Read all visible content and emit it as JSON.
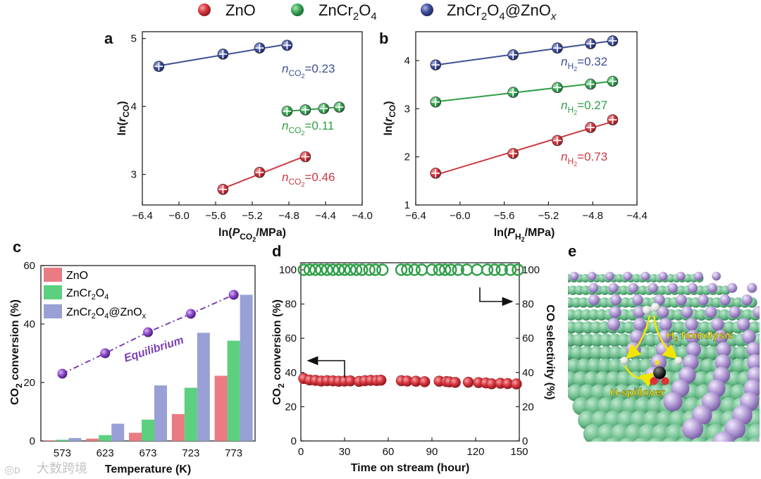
{
  "legend": {
    "items": [
      {
        "name": "ZnO",
        "color": "#d9353d"
      },
      {
        "name": "ZnCr2O4",
        "color": "#3aa957"
      },
      {
        "name": "ZnCr2O4@ZnOx",
        "color": "#3f4f9a"
      }
    ]
  },
  "colors": {
    "red": "#c93a41",
    "green": "#2f9e47",
    "blue": "#3d4f91",
    "red_bar": "#ea7a84",
    "green_bar": "#5cd07e",
    "blue_bar": "#98a0d6",
    "purple": "#7a3fb5",
    "crystal_green": "#6fbf8f",
    "crystal_purple": "#b39bd6"
  },
  "chart_data": [
    {
      "panel": "a",
      "type": "scatter",
      "xlabel": "ln(P_CO2/MPa)",
      "ylabel": "ln(r_CO)",
      "xlim": [
        -6.4,
        -4.0
      ],
      "ylim": [
        2.55,
        5.1
      ],
      "xticks": [
        "−6.4",
        "−6.0",
        "−5.6",
        "−5.2",
        "−4.8",
        "−4.4",
        "−4.0"
      ],
      "yticks": [
        "3",
        "4",
        "5"
      ],
      "series": [
        {
          "name": "ZnCr2O4@ZnOx",
          "x": [
            -6.22,
            -5.52,
            -5.12,
            -4.82
          ],
          "y": [
            4.59,
            4.77,
            4.86,
            4.9
          ],
          "annotation": "n_CO2=0.23"
        },
        {
          "name": "ZnCr2O4",
          "x": [
            -4.82,
            -4.62,
            -4.42,
            -4.25
          ],
          "y": [
            3.93,
            3.95,
            3.97,
            3.99
          ],
          "annotation": "n_CO2=0.11"
        },
        {
          "name": "ZnO",
          "x": [
            -5.52,
            -5.12,
            -4.62
          ],
          "y": [
            2.78,
            3.03,
            3.26
          ],
          "annotation": "n_CO2=0.46"
        }
      ]
    },
    {
      "panel": "b",
      "type": "scatter",
      "xlabel": "ln(P_H2/MPa)",
      "ylabel": "ln(r_CO)",
      "xlim": [
        -6.4,
        -4.4
      ],
      "ylim": [
        1.0,
        4.6
      ],
      "xticks": [
        "−6.4",
        "−6.0",
        "−5.6",
        "−5.2",
        "−4.8",
        "−4.4"
      ],
      "yticks": [
        "1",
        "2",
        "3",
        "4"
      ],
      "series": [
        {
          "name": "ZnCr2O4@ZnOx",
          "x": [
            -6.22,
            -5.52,
            -5.12,
            -4.82,
            -4.62
          ],
          "y": [
            3.91,
            4.12,
            4.26,
            4.35,
            4.41
          ],
          "annotation": "n_H2=0.32"
        },
        {
          "name": "ZnCr2O4",
          "x": [
            -6.22,
            -5.52,
            -5.12,
            -4.82,
            -4.62
          ],
          "y": [
            3.14,
            3.34,
            3.44,
            3.51,
            3.57
          ],
          "annotation": "n_H2=0.27"
        },
        {
          "name": "ZnO",
          "x": [
            -6.22,
            -5.52,
            -5.12,
            -4.82,
            -4.62
          ],
          "y": [
            1.66,
            2.07,
            2.34,
            2.61,
            2.77
          ],
          "annotation": "n_H2=0.73"
        }
      ]
    },
    {
      "panel": "c",
      "type": "bar",
      "xlabel": "Temperature (K)",
      "ylabel": "CO2 conversion (%)",
      "ylim": [
        0,
        60
      ],
      "yticks": [
        "0",
        "20",
        "40",
        "60"
      ],
      "categories": [
        "573",
        "623",
        "673",
        "723",
        "773"
      ],
      "series": [
        {
          "name": "ZnO",
          "values": [
            0.2,
            0.8,
            2.8,
            9.2,
            22.3
          ]
        },
        {
          "name": "ZnCr2O4",
          "values": [
            0.4,
            2.0,
            7.3,
            18.2,
            34.3
          ]
        },
        {
          "name": "ZnCr2O4@ZnOx",
          "values": [
            1.0,
            5.9,
            19.0,
            37.0,
            50.0
          ]
        }
      ],
      "equilibrium": {
        "name": "Equilibrium",
        "values": [
          23.0,
          30.0,
          37.2,
          43.5,
          50.0
        ]
      }
    },
    {
      "panel": "d",
      "type": "scatter",
      "xlabel": "Time on stream (hour)",
      "ylabel": "CO2 conversion (%)",
      "y2label": "CO selectivity (%)",
      "xlim": [
        0,
        150
      ],
      "ylim": [
        0,
        100
      ],
      "xticks": [
        "0",
        "30",
        "60",
        "90",
        "120",
        "150"
      ],
      "yticks": [
        "0",
        "20",
        "40",
        "60",
        "80",
        "100"
      ],
      "series": [
        {
          "name": "CO2 conversion",
          "x": [
            2,
            6,
            10,
            14,
            18,
            22,
            26,
            30,
            34,
            40,
            44,
            48,
            52,
            55,
            69,
            73,
            79,
            85,
            95,
            100,
            102,
            106,
            115,
            122,
            127,
            131,
            137,
            142,
            148
          ],
          "y": [
            36.5,
            35.6,
            35.4,
            35.0,
            35.2,
            35.1,
            34.9,
            35.0,
            35.1,
            34.8,
            35.2,
            35.4,
            35.3,
            35.5,
            35.2,
            35.0,
            34.9,
            34.6,
            34.9,
            34.7,
            34.5,
            34.2,
            34.3,
            34.1,
            33.9,
            33.4,
            33.7,
            33.5,
            33.3
          ]
        },
        {
          "name": "CO selectivity",
          "x": [
            2,
            6,
            10,
            14,
            18,
            22,
            26,
            30,
            34,
            38,
            42,
            47,
            51,
            56,
            69,
            73,
            78,
            83,
            90,
            95,
            99,
            103,
            108,
            114,
            121,
            128,
            133,
            138,
            144,
            149
          ],
          "y": [
            100,
            100,
            100,
            100,
            100,
            100,
            100,
            100,
            100,
            100,
            100,
            100,
            100,
            100,
            100,
            100,
            100,
            100,
            100,
            100,
            100,
            100,
            100,
            100,
            100,
            100,
            100,
            100,
            100,
            100
          ]
        }
      ]
    }
  ],
  "panel_letters": {
    "a": "a",
    "b": "b",
    "c": "c",
    "d": "d",
    "e": "e"
  },
  "panel_a": {
    "xlabel_pre": "ln(",
    "xlabel_P": "P",
    "xlabel_sub": "CO",
    "xlabel_sub2": "2",
    "xlabel_post": "/MPa)",
    "ylabel_pre": "ln(",
    "ylabel_r": "r",
    "ylabel_sub": "CO",
    "ylabel_post": ")",
    "ann": [
      {
        "n": "n",
        "sub": "CO",
        "sub2": "2",
        "val": "=0.23"
      },
      {
        "n": "n",
        "sub": "CO",
        "sub2": "2",
        "val": "=0.11"
      },
      {
        "n": "n",
        "sub": "CO",
        "sub2": "2",
        "val": "=0.46"
      }
    ]
  },
  "panel_b": {
    "xlabel_pre": "ln(",
    "xlabel_P": "P",
    "xlabel_sub": "H",
    "xlabel_sub2": "2",
    "xlabel_post": "/MPa)",
    "ann": [
      {
        "n": "n",
        "sub": "H",
        "sub2": "2",
        "val": "=0.32"
      },
      {
        "n": "n",
        "sub": "H",
        "sub2": "2",
        "val": "=0.27"
      },
      {
        "n": "n",
        "sub": "H",
        "sub2": "2",
        "val": "=0.73"
      }
    ]
  },
  "panel_c": {
    "legend": [
      "ZnO",
      "ZnCr",
      "2",
      "O",
      "4",
      "@ZnO",
      "x"
    ],
    "ylabel_pre": "CO",
    "ylabel_sub": "2",
    "ylabel_post": " conversion (%)",
    "eq_label": "Equilibrium"
  },
  "panel_d": {
    "ylabel_pre": "CO",
    "ylabel_sub": "2",
    "ylabel_post": " conversion (%)"
  },
  "panel_e": {
    "label_h2_pre": "H",
    "label_h2_sub": "2",
    "label_h2_post": " homolysis",
    "label_spill": "H-spillover"
  },
  "watermark": "大数跨境"
}
